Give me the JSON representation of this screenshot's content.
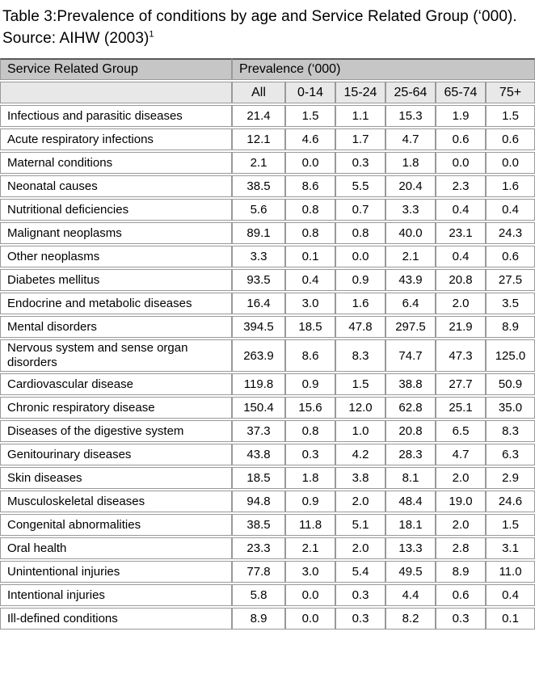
{
  "colors": {
    "text": "#000000",
    "header_bg": "#c6c6c6",
    "subheader_bg": "#e8e8e8",
    "cell_bg": "#ffffff",
    "border": "#999999",
    "border_dark": "#595959"
  },
  "caption": {
    "line1": "Table 3:Prevalence of conditions by age and Service Related Group (‘000).",
    "source_text": "Source: AIHW (2003)",
    "footnote_marker": "1"
  },
  "table": {
    "group_header": "Service Related Group",
    "prevalence_header": "Prevalence (‘000)",
    "age_columns": [
      "All",
      "0-14",
      "15-24",
      "25-64",
      "65-74",
      "75+"
    ],
    "rows": [
      {
        "label": "Infectious and parasitic diseases",
        "values": [
          "21.4",
          "1.5",
          "1.1",
          "15.3",
          "1.9",
          "1.5"
        ]
      },
      {
        "label": "Acute respiratory infections",
        "values": [
          "12.1",
          "4.6",
          "1.7",
          "4.7",
          "0.6",
          "0.6"
        ]
      },
      {
        "label": "Maternal conditions",
        "values": [
          "2.1",
          "0.0",
          "0.3",
          "1.8",
          "0.0",
          "0.0"
        ]
      },
      {
        "label": "Neonatal causes",
        "values": [
          "38.5",
          "8.6",
          "5.5",
          "20.4",
          "2.3",
          "1.6"
        ]
      },
      {
        "label": "Nutritional deficiencies",
        "values": [
          "5.6",
          "0.8",
          "0.7",
          "3.3",
          "0.4",
          "0.4"
        ]
      },
      {
        "label": "Malignant neoplasms",
        "values": [
          "89.1",
          "0.8",
          "0.8",
          "40.0",
          "23.1",
          "24.3"
        ]
      },
      {
        "label": "Other neoplasms",
        "values": [
          "3.3",
          "0.1",
          "0.0",
          "2.1",
          "0.4",
          "0.6"
        ]
      },
      {
        "label": "Diabetes mellitus",
        "values": [
          "93.5",
          "0.4",
          "0.9",
          "43.9",
          "20.8",
          "27.5"
        ]
      },
      {
        "label": "Endocrine and metabolic diseases",
        "values": [
          "16.4",
          "3.0",
          "1.6",
          "6.4",
          "2.0",
          "3.5"
        ]
      },
      {
        "label": "Mental disorders",
        "values": [
          "394.5",
          "18.5",
          "47.8",
          "297.5",
          "21.9",
          "8.9"
        ]
      },
      {
        "label": "Nervous system and sense organ disorders",
        "values": [
          "263.9",
          "8.6",
          "8.3",
          "74.7",
          "47.3",
          "125.0"
        ]
      },
      {
        "label": "Cardiovascular disease",
        "values": [
          "119.8",
          "0.9",
          "1.5",
          "38.8",
          "27.7",
          "50.9"
        ]
      },
      {
        "label": "Chronic respiratory disease",
        "values": [
          "150.4",
          "15.6",
          "12.0",
          "62.8",
          "25.1",
          "35.0"
        ]
      },
      {
        "label": "Diseases of the digestive system",
        "values": [
          "37.3",
          "0.8",
          "1.0",
          "20.8",
          "6.5",
          "8.3"
        ]
      },
      {
        "label": "Genitourinary diseases",
        "values": [
          "43.8",
          "0.3",
          "4.2",
          "28.3",
          "4.7",
          "6.3"
        ]
      },
      {
        "label": "Skin diseases",
        "values": [
          "18.5",
          "1.8",
          "3.8",
          "8.1",
          "2.0",
          "2.9"
        ]
      },
      {
        "label": "Musculoskeletal diseases",
        "values": [
          "94.8",
          "0.9",
          "2.0",
          "48.4",
          "19.0",
          "24.6"
        ]
      },
      {
        "label": "Congenital abnormalities",
        "values": [
          "38.5",
          "11.8",
          "5.1",
          "18.1",
          "2.0",
          "1.5"
        ]
      },
      {
        "label": "Oral health",
        "values": [
          "23.3",
          "2.1",
          "2.0",
          "13.3",
          "2.8",
          "3.1"
        ]
      },
      {
        "label": "Unintentional injuries",
        "values": [
          "77.8",
          "3.0",
          "5.4",
          "49.5",
          "8.9",
          "11.0"
        ]
      },
      {
        "label": "Intentional injuries",
        "values": [
          "5.8",
          "0.0",
          "0.3",
          "4.4",
          "0.6",
          "0.4"
        ]
      },
      {
        "label": "Ill-defined conditions",
        "values": [
          "8.9",
          "0.0",
          "0.3",
          "8.2",
          "0.3",
          "0.1"
        ]
      }
    ]
  }
}
